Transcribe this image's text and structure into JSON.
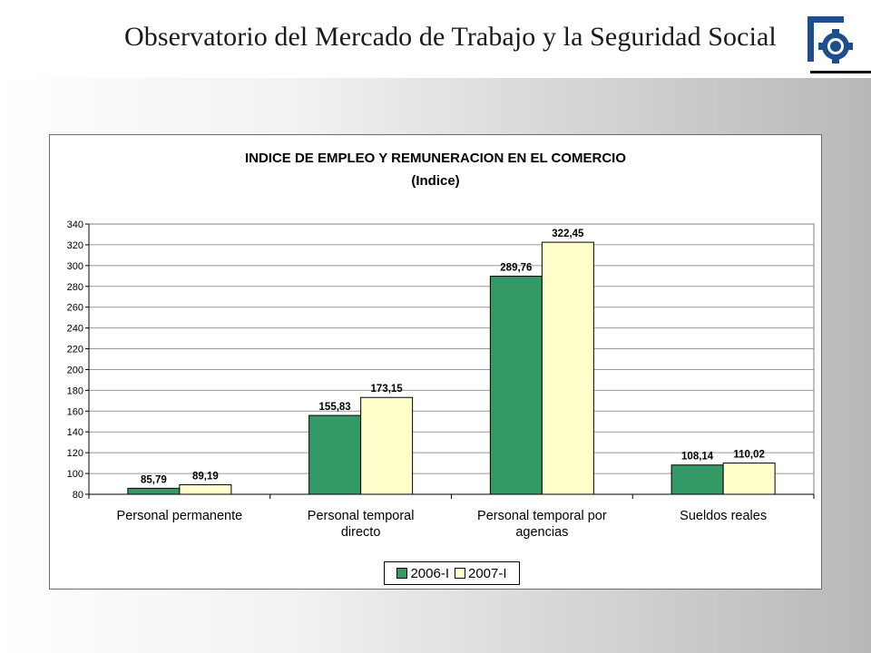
{
  "header": {
    "title": "Observatorio del Mercado de Trabajo y la Seguridad Social",
    "logo_icon": "gear-logo-icon"
  },
  "colors": {
    "series_2006": "#339966",
    "series_2007": "#ffffcc",
    "logo_blue": "#1f4e8c"
  },
  "chart_data": {
    "type": "bar",
    "title": "INDICE DE EMPLEO Y REMUNERACION EN EL COMERCIO",
    "subtitle": "(Indice)",
    "categories": [
      [
        "Personal permanente"
      ],
      [
        "Personal temporal",
        "directo"
      ],
      [
        "Personal temporal por",
        "agencias"
      ],
      [
        "Sueldos reales"
      ]
    ],
    "series": [
      {
        "name": "2006-I",
        "values": [
          85.79,
          155.83,
          289.76,
          108.14
        ],
        "labels": [
          "85,79",
          "155,83",
          "289,76",
          "108,14"
        ]
      },
      {
        "name": "2007-I",
        "values": [
          89.19,
          173.15,
          322.45,
          110.02
        ],
        "labels": [
          "89,19",
          "173,15",
          "322,45",
          "110,02"
        ]
      }
    ],
    "ylim": [
      80,
      340
    ],
    "yticks": [
      80,
      100,
      120,
      140,
      160,
      180,
      200,
      220,
      240,
      260,
      280,
      300,
      320,
      340
    ],
    "grid": true,
    "legend_position": "bottom-center"
  }
}
